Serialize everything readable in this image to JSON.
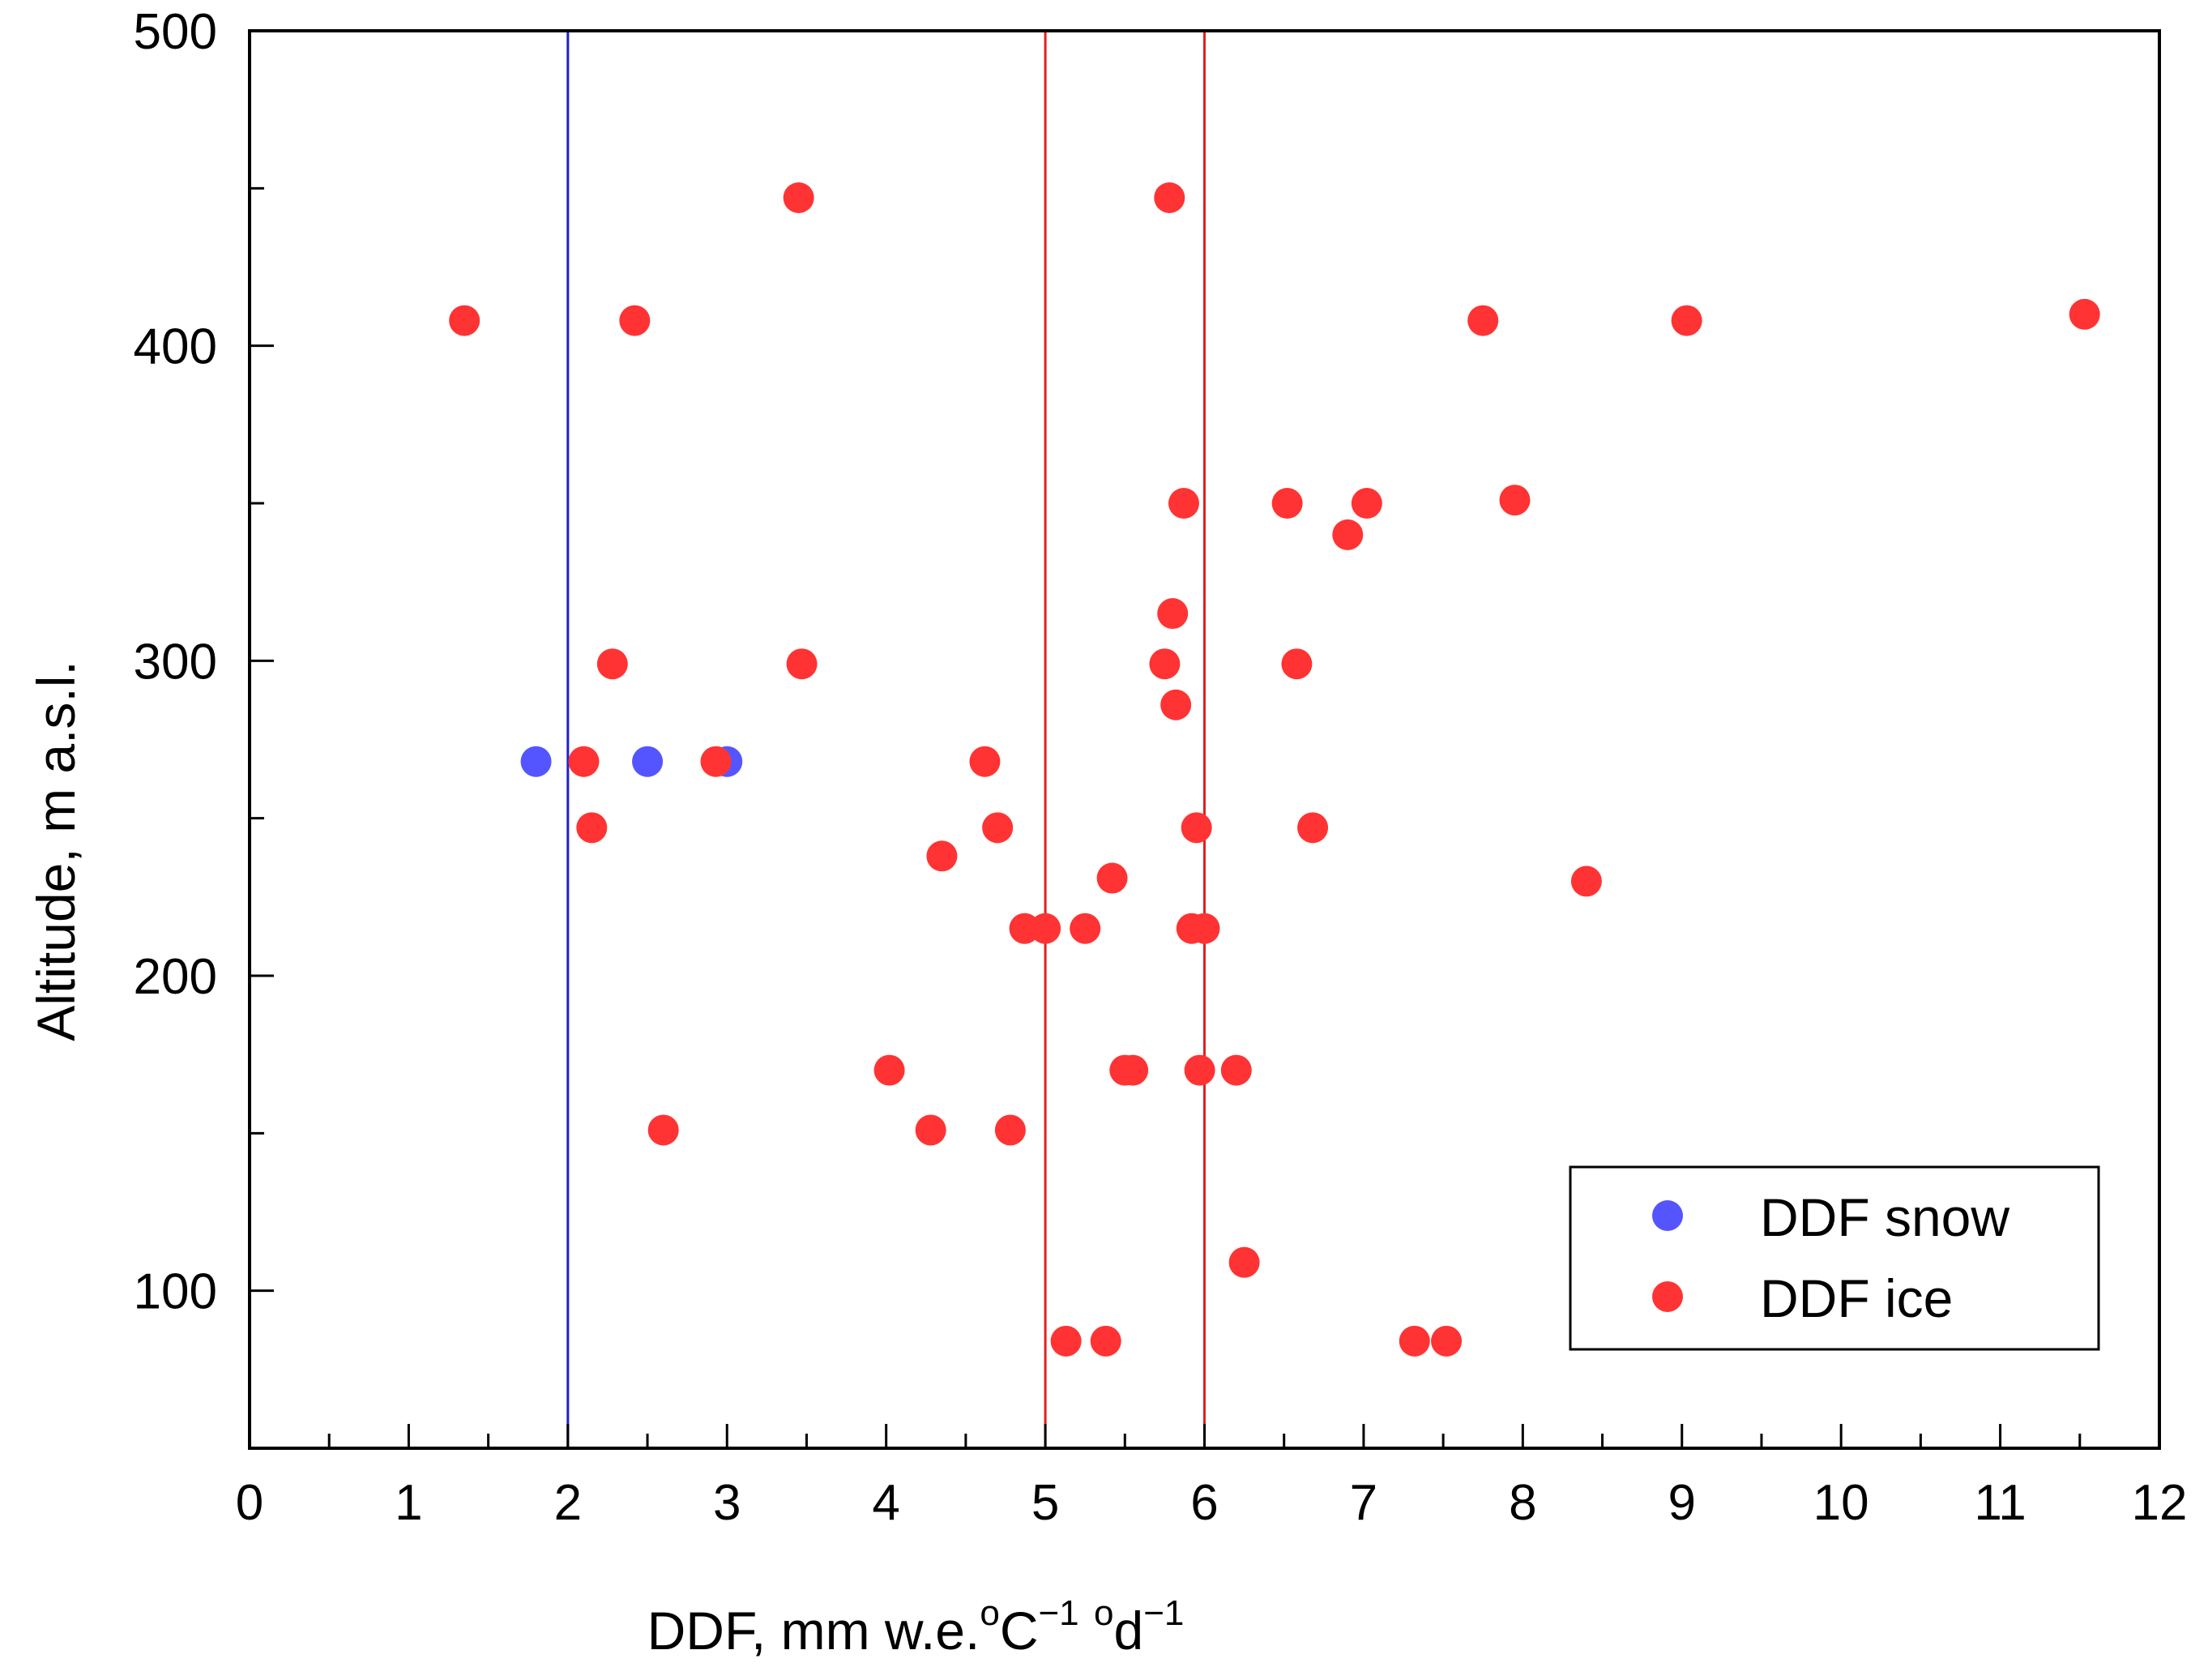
{
  "chart_data": {
    "type": "scatter",
    "xlabel": {
      "base": "DDF, mm w.e.",
      "deg1": "o",
      "unit1": "C",
      "exp1": "−1",
      "deg2": "o",
      "unit2": "d",
      "exp2": "−1"
    },
    "ylabel": "Altitude, m a.s.l.",
    "xlim": [
      0,
      12
    ],
    "ylim": [
      50,
      500
    ],
    "xticks": [
      0,
      1,
      2,
      3,
      4,
      5,
      6,
      7,
      8,
      9,
      10,
      11,
      12
    ],
    "yticks": [
      100,
      200,
      300,
      400,
      500
    ],
    "legend_position": "bottom-right",
    "vlines": [
      {
        "x": 2,
        "color": "#2020cc"
      },
      {
        "x": 5,
        "color": "#e02020"
      },
      {
        "x": 6,
        "color": "#e02020"
      }
    ],
    "series": [
      {
        "name": "DDF snow",
        "color": "#5555ff",
        "points": [
          [
            1.8,
            268
          ],
          [
            2.5,
            268
          ],
          [
            3.0,
            268
          ]
        ]
      },
      {
        "name": "DDF ice",
        "color": "#ff3333",
        "points": [
          [
            1.35,
            408
          ],
          [
            2.42,
            408
          ],
          [
            3.45,
            447
          ],
          [
            5.78,
            447
          ],
          [
            7.75,
            408
          ],
          [
            9.03,
            408
          ],
          [
            11.53,
            410
          ],
          [
            5.87,
            350
          ],
          [
            6.52,
            350
          ],
          [
            7.02,
            350
          ],
          [
            7.95,
            351
          ],
          [
            6.9,
            340
          ],
          [
            5.8,
            315
          ],
          [
            2.28,
            299
          ],
          [
            3.47,
            299
          ],
          [
            5.75,
            299
          ],
          [
            6.58,
            299
          ],
          [
            5.82,
            286
          ],
          [
            2.1,
            268
          ],
          [
            2.93,
            268
          ],
          [
            4.62,
            268
          ],
          [
            2.15,
            247
          ],
          [
            4.7,
            247
          ],
          [
            5.95,
            247
          ],
          [
            6.68,
            247
          ],
          [
            4.35,
            238
          ],
          [
            5.42,
            231
          ],
          [
            8.4,
            230
          ],
          [
            4.87,
            215
          ],
          [
            5.0,
            215
          ],
          [
            5.25,
            215
          ],
          [
            5.92,
            215
          ],
          [
            6.0,
            215
          ],
          [
            4.02,
            170
          ],
          [
            5.5,
            170
          ],
          [
            5.55,
            170
          ],
          [
            5.97,
            170
          ],
          [
            6.2,
            170
          ],
          [
            2.6,
            151
          ],
          [
            4.28,
            151
          ],
          [
            4.78,
            151
          ],
          [
            6.25,
            109
          ],
          [
            5.13,
            84
          ],
          [
            5.38,
            84
          ],
          [
            7.32,
            84
          ],
          [
            7.52,
            84
          ]
        ]
      }
    ]
  }
}
